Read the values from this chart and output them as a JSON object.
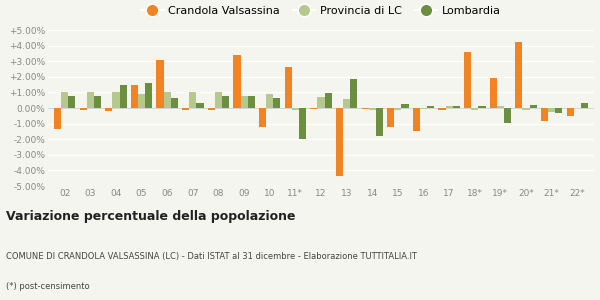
{
  "categories": [
    "02",
    "03",
    "04",
    "05",
    "06",
    "07",
    "08",
    "09",
    "10",
    "11*",
    "12",
    "13",
    "14",
    "15",
    "16",
    "17",
    "18*",
    "19*",
    "20*",
    "21*",
    "22*"
  ],
  "crandola": [
    -1.35,
    -0.15,
    -0.2,
    1.5,
    3.05,
    -0.15,
    -0.1,
    3.4,
    -1.2,
    2.6,
    -0.05,
    -4.35,
    -0.05,
    -1.2,
    -1.5,
    -0.15,
    3.6,
    1.95,
    4.2,
    -0.85,
    -0.5
  ],
  "provincia": [
    1.0,
    1.05,
    1.0,
    0.9,
    1.0,
    1.0,
    1.05,
    0.8,
    0.9,
    -0.1,
    0.7,
    0.55,
    -0.1,
    -0.1,
    -0.05,
    0.1,
    -0.1,
    0.15,
    -0.15,
    -0.25,
    0.0
  ],
  "lombardia": [
    0.75,
    0.75,
    1.5,
    1.6,
    0.65,
    0.3,
    0.75,
    0.75,
    0.65,
    -2.0,
    0.95,
    1.85,
    -1.8,
    0.25,
    0.1,
    0.1,
    0.15,
    -0.95,
    0.2,
    -0.3,
    0.3
  ],
  "color_crandola": "#f28322",
  "color_provincia": "#b5c98e",
  "color_lombardia": "#6b8f3e",
  "ylim": [
    -5.0,
    5.0
  ],
  "yticks": [
    -5.0,
    -4.0,
    -3.0,
    -2.0,
    -1.0,
    0.0,
    1.0,
    2.0,
    3.0,
    4.0,
    5.0
  ],
  "title": "Variazione percentuale della popolazione",
  "subtitle": "COMUNE DI CRANDOLA VALSASSINA (LC) - Dati ISTAT al 31 dicembre - Elaborazione TUTTITALIA.IT",
  "footnote": "(*) post-censimento",
  "legend_labels": [
    "Crandola Valsassina",
    "Provincia di LC",
    "Lombardia"
  ],
  "bg_color": "#f5f5f0",
  "bar_width": 0.28
}
